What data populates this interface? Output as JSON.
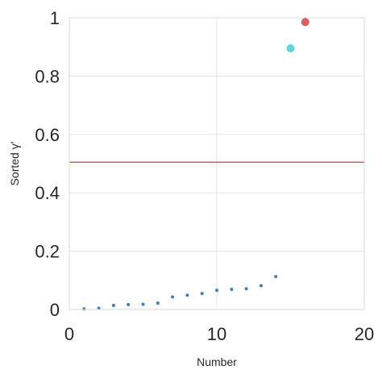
{
  "chart_data": {
    "type": "scatter",
    "xlabel": "Number",
    "ylabel": "Sorted γ'",
    "xlim": [
      0,
      20
    ],
    "ylim": [
      0,
      1
    ],
    "xticks": [
      "0",
      "10",
      "20"
    ],
    "yticks": [
      "0",
      "0.2",
      "0.4",
      "0.6",
      "0.8",
      "1"
    ],
    "grid": true,
    "threshold": {
      "y": 0.505,
      "color": "#e05555"
    },
    "series": [
      {
        "color": "#3a7fc4",
        "marker": "small",
        "x": [
          1,
          2,
          3,
          4,
          5,
          6,
          7,
          8,
          9,
          10,
          11,
          12,
          13,
          14
        ],
        "y": [
          0.002,
          0.004,
          0.014,
          0.017,
          0.018,
          0.022,
          0.043,
          0.049,
          0.055,
          0.066,
          0.069,
          0.071,
          0.082,
          0.113
        ]
      },
      {
        "color": "#5fd3dc",
        "marker": "large",
        "x": [
          15
        ],
        "y": [
          0.895
        ]
      },
      {
        "color": "#d9605f",
        "marker": "large",
        "x": [
          16
        ],
        "y": [
          0.985
        ]
      }
    ]
  }
}
